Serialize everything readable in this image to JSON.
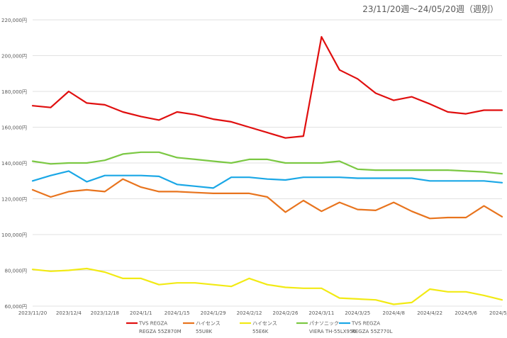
{
  "chart_data": {
    "type": "line",
    "title": "23/11/20週〜24/05/20週（週別）",
    "xlabel": "",
    "ylabel": "",
    "ylim": [
      60000,
      220000
    ],
    "y_ticks": [
      "60,000円",
      "80,000円",
      "100,000円",
      "120,000円",
      "140,000円",
      "160,000円",
      "180,000円",
      "200,000円",
      "220,000円"
    ],
    "y_tick_values": [
      60000,
      80000,
      100000,
      120000,
      140000,
      160000,
      180000,
      200000,
      220000
    ],
    "x_tick_labels": [
      "2023/11/20",
      "2023/12/4",
      "2023/12/18",
      "2024/1/1",
      "2024/1/15",
      "2024/1/29",
      "2024/2/12",
      "2024/2/26",
      "2024/3/11",
      "2024/3/25",
      "2024/4/8",
      "2024/4/22",
      "2024/5/6",
      "2024/5/20"
    ],
    "x_tick_indices": [
      0,
      2,
      4,
      6,
      8,
      10,
      12,
      14,
      16,
      18,
      20,
      22,
      24,
      26
    ],
    "x": [
      "2023/11/20",
      "2023/11/27",
      "2023/12/4",
      "2023/12/11",
      "2023/12/18",
      "2023/12/25",
      "2024/1/1",
      "2024/1/8",
      "2024/1/15",
      "2024/1/22",
      "2024/1/29",
      "2024/2/5",
      "2024/2/12",
      "2024/2/19",
      "2024/2/26",
      "2024/3/4",
      "2024/3/11",
      "2024/3/18",
      "2024/3/25",
      "2024/4/1",
      "2024/4/8",
      "2024/4/15",
      "2024/4/22",
      "2024/4/29",
      "2024/5/6",
      "2024/5/13",
      "2024/5/20"
    ],
    "grid": true,
    "legend_position": "bottom",
    "series": [
      {
        "name": "TVS REGZA",
        "model": "REGZA 55Z870M",
        "color": "#e00f0f",
        "values": [
          172000,
          171000,
          180000,
          173500,
          172500,
          168500,
          166000,
          164000,
          168500,
          167000,
          164500,
          163000,
          160000,
          157000,
          154000,
          155000,
          210500,
          192000,
          187000,
          179000,
          175000,
          177000,
          173000,
          168500,
          167500,
          169500,
          169500
        ]
      },
      {
        "name": "ハイセンス",
        "model": "55U8K",
        "color": "#e8741e",
        "values": [
          125000,
          121000,
          124000,
          125000,
          124000,
          131000,
          126500,
          124000,
          124000,
          123500,
          123000,
          123000,
          123000,
          121000,
          112500,
          119000,
          113000,
          118000,
          114000,
          113500,
          118000,
          113000,
          109000,
          109500,
          109500,
          116000,
          110000
        ]
      },
      {
        "name": "ハイセンス",
        "model": "55E6K",
        "color": "#f2ea14",
        "values": [
          80500,
          79500,
          80000,
          81000,
          79000,
          75500,
          75500,
          72000,
          73000,
          73000,
          72000,
          71000,
          75500,
          72000,
          70500,
          70000,
          70000,
          64500,
          64000,
          63500,
          61000,
          62000,
          69500,
          68000,
          68000,
          66000,
          63500
        ]
      },
      {
        "name": "パナソニック",
        "model": "VIERA TH-55LX950",
        "color": "#7bc843",
        "values": [
          141000,
          139500,
          140000,
          140000,
          141500,
          145000,
          146000,
          146000,
          143000,
          142000,
          141000,
          140000,
          142000,
          142000,
          140000,
          140000,
          140000,
          141000,
          136500,
          136000,
          136000,
          136000,
          136000,
          136000,
          135500,
          135000,
          134000
        ]
      },
      {
        "name": "TVS REGZA",
        "model": "REGZA 55Z770L",
        "color": "#1aa7e6",
        "values": [
          130000,
          133000,
          135500,
          129500,
          133000,
          133000,
          133000,
          132500,
          128000,
          127000,
          126000,
          132000,
          132000,
          131000,
          130500,
          132000,
          132000,
          132000,
          131500,
          131500,
          131500,
          131500,
          130000,
          130000,
          130000,
          130000,
          129000
        ]
      }
    ]
  }
}
